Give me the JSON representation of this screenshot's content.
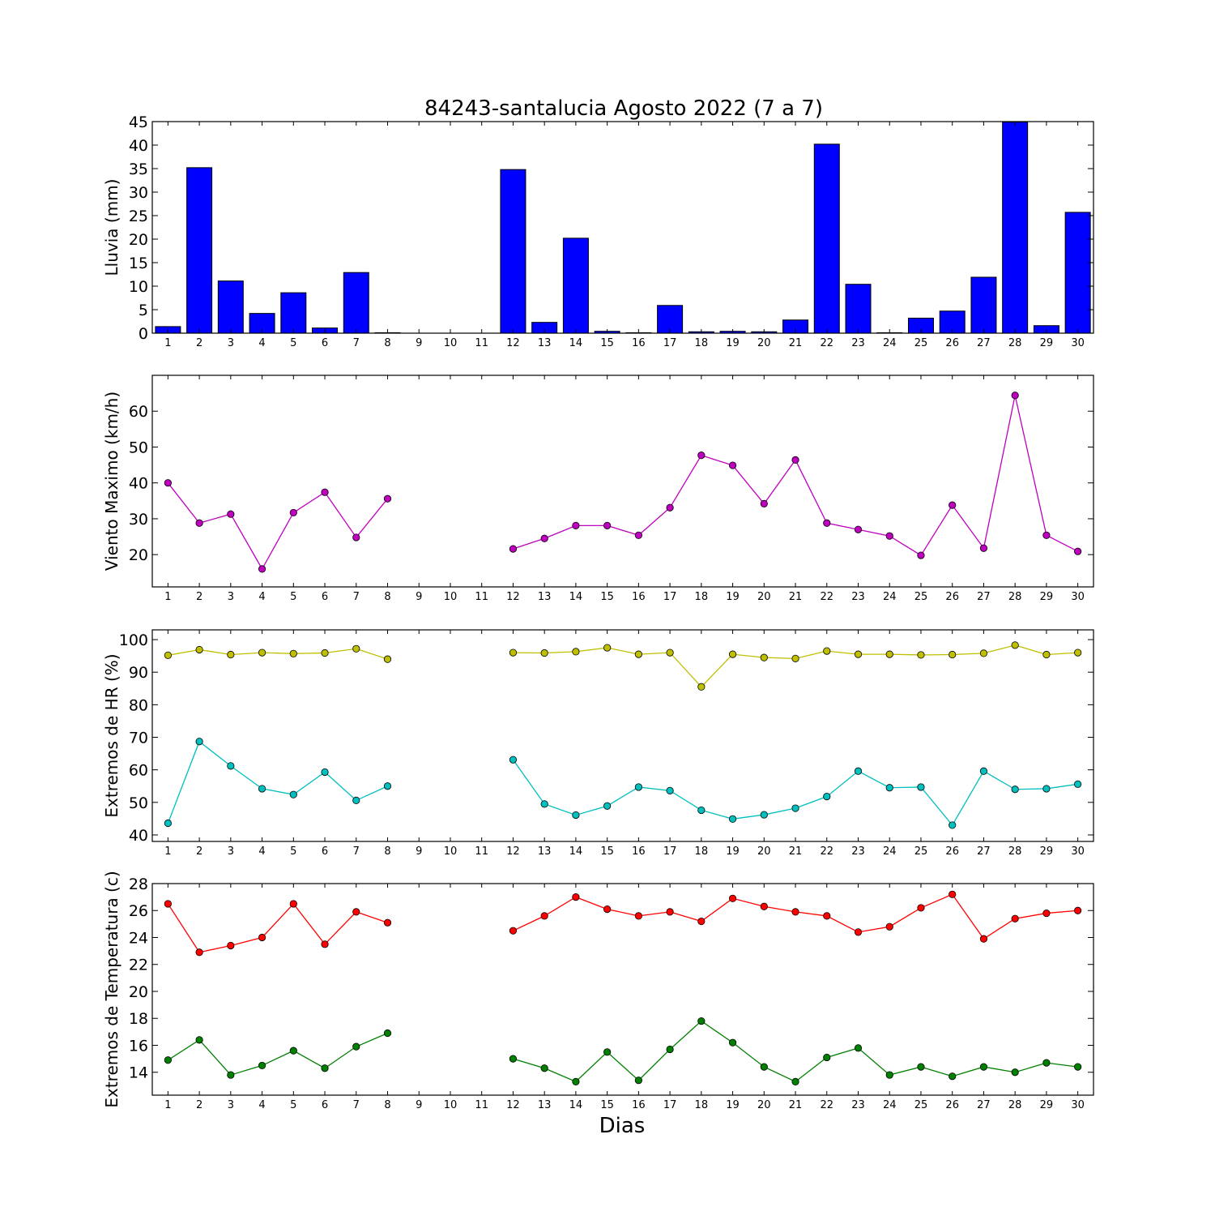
{
  "figure": {
    "title": "84243-santalucia Agosto 2022  (7 a 7)",
    "xlabel": "Dias"
  },
  "chart_data": [
    {
      "type": "bar",
      "ylabel": "Lluvia (mm)",
      "ylim": [
        0,
        45
      ],
      "yticks": [
        0,
        5,
        10,
        15,
        20,
        25,
        30,
        35,
        40,
        45
      ],
      "categories": [
        "1",
        "2",
        "3",
        "4",
        "5",
        "6",
        "7",
        "8",
        "9",
        "10",
        "11",
        "12",
        "13",
        "14",
        "15",
        "16",
        "17",
        "18",
        "19",
        "20",
        "21",
        "22",
        "23",
        "24",
        "25",
        "26",
        "27",
        "28",
        "29",
        "30"
      ],
      "colors": {
        "bar": "#0000ff",
        "edge": "#000000"
      },
      "series": [
        {
          "values": [
            1.4,
            35.2,
            11.1,
            4.2,
            8.6,
            1.1,
            12.9,
            0.1,
            0.0,
            0.0,
            0.0,
            34.8,
            2.3,
            20.2,
            0.4,
            0.1,
            5.9,
            0.3,
            0.4,
            0.3,
            2.8,
            40.2,
            10.4,
            0.1,
            3.2,
            4.7,
            11.9,
            44.9,
            1.6,
            25.7
          ]
        }
      ]
    },
    {
      "type": "line",
      "ylabel": "Viento Maximo (km/h)",
      "ylim": [
        11,
        70
      ],
      "yticks": [
        20,
        30,
        40,
        50,
        60
      ],
      "categories": [
        "1",
        "2",
        "3",
        "4",
        "5",
        "6",
        "7",
        "8",
        "9",
        "10",
        "11",
        "12",
        "13",
        "14",
        "15",
        "16",
        "17",
        "18",
        "19",
        "20",
        "21",
        "22",
        "23",
        "24",
        "25",
        "26",
        "27",
        "28",
        "29",
        "30"
      ],
      "series": [
        {
          "color": "#bf00bf",
          "values": [
            40.0,
            28.8,
            31.3,
            16.0,
            31.7,
            37.4,
            24.8,
            35.6,
            null,
            null,
            null,
            21.6,
            24.5,
            28.1,
            28.1,
            25.4,
            33.1,
            47.7,
            44.9,
            34.2,
            46.4,
            28.8,
            27.0,
            25.2,
            19.8,
            33.8,
            21.8,
            64.4,
            25.4,
            20.9
          ]
        }
      ]
    },
    {
      "type": "line",
      "ylabel": "Extremos de HR (%)",
      "ylim": [
        38,
        103
      ],
      "yticks": [
        40,
        50,
        60,
        70,
        80,
        90,
        100
      ],
      "categories": [
        "1",
        "2",
        "3",
        "4",
        "5",
        "6",
        "7",
        "8",
        "9",
        "10",
        "11",
        "12",
        "13",
        "14",
        "15",
        "16",
        "17",
        "18",
        "19",
        "20",
        "21",
        "22",
        "23",
        "24",
        "25",
        "26",
        "27",
        "28",
        "29",
        "30"
      ],
      "series": [
        {
          "color": "#bfbf00",
          "values": [
            95.2,
            96.9,
            95.4,
            96.0,
            95.7,
            95.9,
            97.2,
            94.0,
            null,
            null,
            null,
            96.0,
            95.9,
            96.3,
            97.5,
            95.5,
            96.0,
            85.5,
            95.5,
            94.5,
            94.2,
            96.5,
            95.5,
            95.5,
            95.3,
            95.4,
            95.8,
            98.3,
            95.4,
            96.0
          ]
        },
        {
          "color": "#00bfbf",
          "values": [
            43.6,
            68.7,
            61.2,
            54.2,
            52.4,
            59.3,
            50.6,
            55.0,
            null,
            null,
            null,
            63.1,
            49.5,
            46.1,
            48.9,
            54.7,
            53.6,
            47.6,
            44.9,
            46.2,
            48.2,
            51.8,
            59.6,
            54.5,
            54.7,
            43.0,
            59.6,
            54.0,
            54.2,
            55.6
          ]
        }
      ]
    },
    {
      "type": "line",
      "ylabel": "Extremos de Temperatura (c)",
      "ylim": [
        12.3,
        28.0
      ],
      "yticks": [
        14,
        16,
        18,
        20,
        22,
        24,
        26,
        28
      ],
      "categories": [
        "1",
        "2",
        "3",
        "4",
        "5",
        "6",
        "7",
        "8",
        "9",
        "10",
        "11",
        "12",
        "13",
        "14",
        "15",
        "16",
        "17",
        "18",
        "19",
        "20",
        "21",
        "22",
        "23",
        "24",
        "25",
        "26",
        "27",
        "28",
        "29",
        "30"
      ],
      "series": [
        {
          "color": "#ff0000",
          "values": [
            26.5,
            22.9,
            23.4,
            24.0,
            26.5,
            23.5,
            25.9,
            25.1,
            null,
            null,
            null,
            24.5,
            25.6,
            27.0,
            26.1,
            25.6,
            25.9,
            25.2,
            26.9,
            26.3,
            25.9,
            25.6,
            24.4,
            24.8,
            26.2,
            27.2,
            23.9,
            25.4,
            25.8,
            26.0
          ]
        },
        {
          "color": "#008000",
          "values": [
            14.9,
            16.4,
            13.8,
            14.5,
            15.6,
            14.3,
            15.9,
            16.9,
            null,
            null,
            null,
            15.0,
            14.3,
            13.3,
            15.5,
            13.4,
            15.7,
            17.8,
            16.2,
            14.4,
            13.3,
            15.1,
            15.8,
            13.8,
            14.4,
            13.7,
            14.4,
            14.0,
            14.7,
            14.4
          ]
        }
      ]
    }
  ]
}
